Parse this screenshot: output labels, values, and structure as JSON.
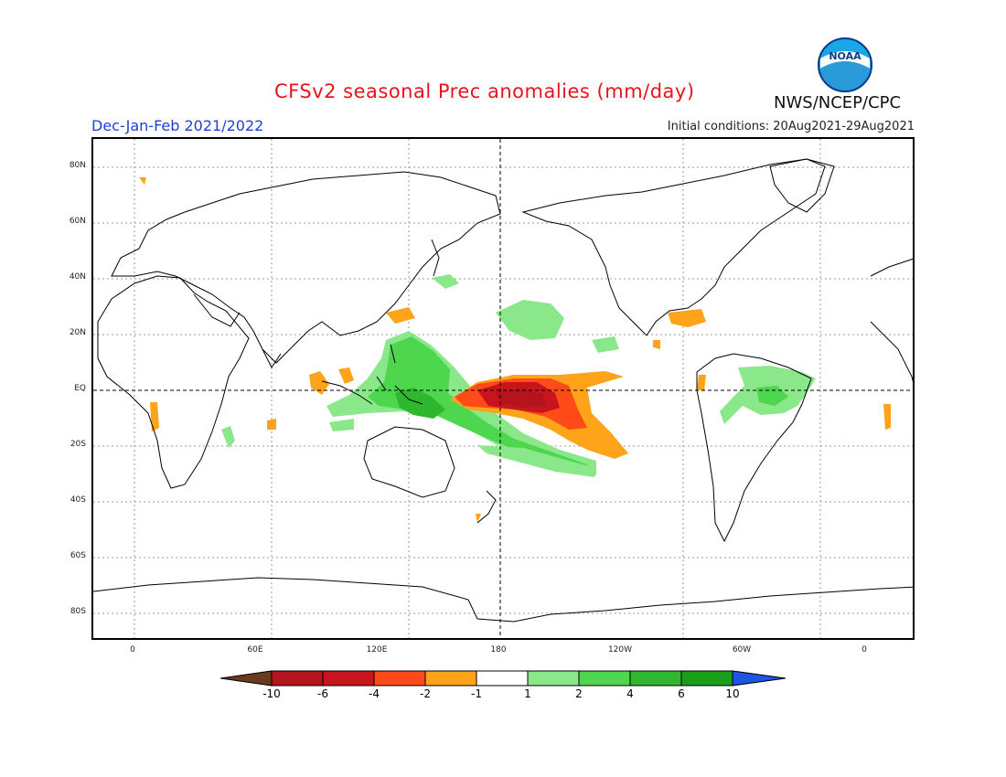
{
  "header": {
    "title": "CFSv2 seasonal Prec anomalies (mm/day)",
    "season": "Dec-Jan-Feb 2021/2022",
    "initial_conditions": "Initial conditions: 20Aug2021-29Aug2021",
    "agency": "NWS/NCEP/CPC",
    "logo_text": "NOAA",
    "title_color": "#e8141c",
    "season_color": "#1d3fd6"
  },
  "map": {
    "projection": "equirectangular",
    "lon_ticks": [
      "0",
      "60E",
      "120E",
      "180",
      "120W",
      "60W",
      "0"
    ],
    "lat_ticks": [
      "80N",
      "60N",
      "40N",
      "20N",
      "EQ",
      "20S",
      "40S",
      "60S",
      "80S"
    ],
    "reference_lines": [
      "EQ",
      "180"
    ]
  },
  "colorbar": {
    "labels": [
      "-10",
      "-6",
      "-4",
      "-2",
      "-1",
      "1",
      "2",
      "4",
      "6",
      "10"
    ],
    "colors": [
      "#6b3a1e",
      "#b4141c",
      "#c8141c",
      "#ff4a1a",
      "#ffa31a",
      "#ffffff",
      "#8ae88a",
      "#4ed64e",
      "#2fb82f",
      "#1a9e1a",
      "#1e55e6"
    ]
  },
  "anomaly_regions": [
    {
      "name": "central-pacific-dry",
      "category": "-6 to -10",
      "color": "#b4141c"
    },
    {
      "name": "central-pacific-dry-outer",
      "category": "-2 to -4",
      "color": "#ff4a1a"
    },
    {
      "name": "equatorial-pacific-dry-fringe",
      "category": "-1 to -2",
      "color": "#ffa31a"
    },
    {
      "name": "maritime-continent-wet",
      "category": "2 to 6",
      "color": "#4ed64e"
    },
    {
      "name": "spcz-wet",
      "category": "1 to 4",
      "color": "#8ae88a"
    },
    {
      "name": "amazon-wet",
      "category": "1 to 2",
      "color": "#8ae88a"
    }
  ]
}
